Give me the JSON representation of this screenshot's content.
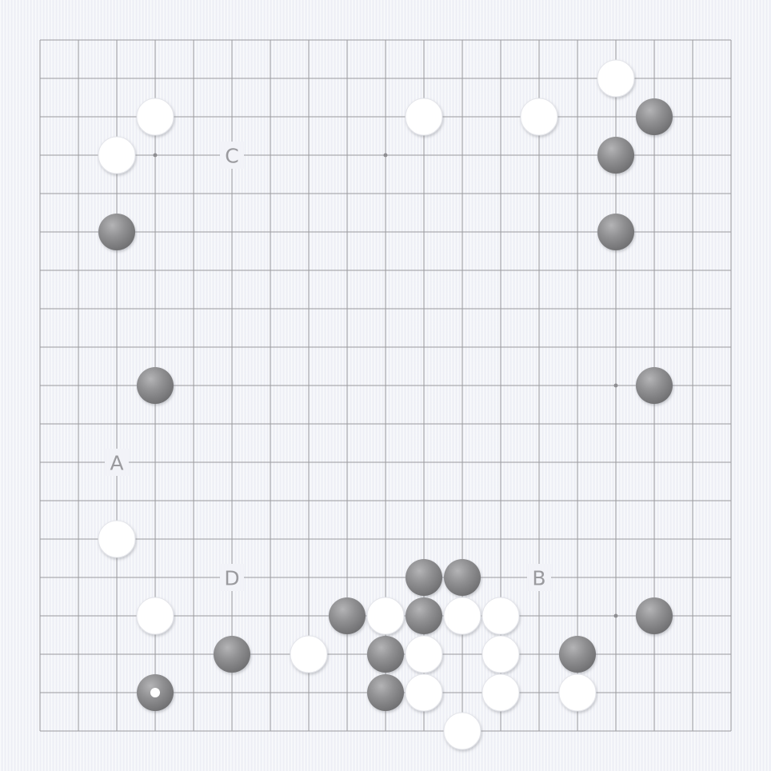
{
  "game": "go",
  "board": {
    "size": 19,
    "visible_columns": [
      0,
      18
    ],
    "visible_rows": [
      0,
      18
    ],
    "star_points": [
      [
        3,
        3
      ],
      [
        9,
        3
      ],
      [
        3,
        9
      ],
      [
        15,
        9
      ],
      [
        15,
        15
      ]
    ],
    "colors": {
      "background": "#f2f3f8",
      "grid": "#9a9a9e",
      "black_stone": "#8c8c8e",
      "white_stone": "#ffffff",
      "label": "#9a9a9e"
    }
  },
  "stones": {
    "black": [
      [
        16,
        2
      ],
      [
        15,
        3
      ],
      [
        2,
        5
      ],
      [
        15,
        5
      ],
      [
        3,
        9
      ],
      [
        16,
        9
      ],
      [
        10,
        14
      ],
      [
        11,
        14
      ],
      [
        8,
        15
      ],
      [
        10,
        15
      ],
      [
        16,
        15
      ],
      [
        5,
        16
      ],
      [
        9,
        16
      ],
      [
        14,
        16
      ],
      [
        3,
        17
      ],
      [
        9,
        17
      ]
    ],
    "white": [
      [
        15,
        1
      ],
      [
        3,
        2
      ],
      [
        10,
        2
      ],
      [
        13,
        2
      ],
      [
        2,
        3
      ],
      [
        2,
        13
      ],
      [
        3,
        15
      ],
      [
        9,
        15
      ],
      [
        11,
        15
      ],
      [
        12,
        15
      ],
      [
        7,
        16
      ],
      [
        10,
        16
      ],
      [
        12,
        16
      ],
      [
        10,
        17
      ],
      [
        12,
        17
      ],
      [
        14,
        17
      ],
      [
        11,
        18
      ]
    ]
  },
  "last_move": {
    "color": "black",
    "point": [
      3,
      17
    ]
  },
  "labels": [
    {
      "text": "A",
      "point": [
        2,
        11
      ]
    },
    {
      "text": "B",
      "point": [
        13,
        14
      ]
    },
    {
      "text": "C",
      "point": [
        5,
        3
      ]
    },
    {
      "text": "D",
      "point": [
        5,
        14
      ]
    }
  ]
}
